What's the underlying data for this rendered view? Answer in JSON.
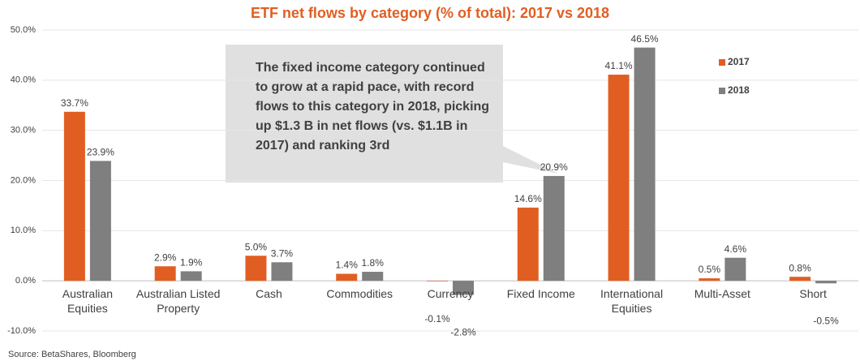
{
  "chart_data": {
    "type": "bar",
    "title": "ETF net flows by category (% of total): 2017 vs 2018",
    "categories": [
      "Australian Equities",
      "Australian Listed Property",
      "Cash",
      "Commodities",
      "Currency",
      "Fixed Income",
      "International Equities",
      "Multi-Asset",
      "Short"
    ],
    "series": [
      {
        "name": "2017",
        "color": "#e15e22",
        "values": [
          33.7,
          2.9,
          5.0,
          1.4,
          -0.1,
          14.6,
          41.1,
          0.5,
          0.8
        ],
        "value_labels": [
          "33.7%",
          "2.9%",
          "5.0%",
          "1.4%",
          "-0.1%",
          "14.6%",
          "41.1%",
          "0.5%",
          "0.8%"
        ]
      },
      {
        "name": "2018",
        "color": "#7f7f7f",
        "values": [
          23.9,
          1.9,
          3.7,
          1.8,
          -2.8,
          20.9,
          46.5,
          4.6,
          -0.5
        ],
        "value_labels": [
          "23.9%",
          "1.9%",
          "3.7%",
          "1.8%",
          "-2.8%",
          "20.9%",
          "46.5%",
          "4.6%",
          "-0.5%"
        ]
      }
    ],
    "ylim": [
      -10,
      50
    ],
    "yticks": [
      {
        "value": -10,
        "label": "-10.0%"
      },
      {
        "value": 0,
        "label": "0.0%"
      },
      {
        "value": 10,
        "label": "10.0%"
      },
      {
        "value": 20,
        "label": "20.0%"
      },
      {
        "value": 30,
        "label": "30.0%"
      },
      {
        "value": 40,
        "label": "40.0%"
      },
      {
        "value": 50,
        "label": "50.0%"
      }
    ],
    "grid": true,
    "legend": "upper right",
    "annotation": "The fixed income category continued to grow at a rapid pace, with record flows to this category in 2018, picking up $1.3 B in net flows (vs. $1.1B in 2017) and ranking 3rd",
    "source": "Source: BetaShares, Bloomberg"
  }
}
